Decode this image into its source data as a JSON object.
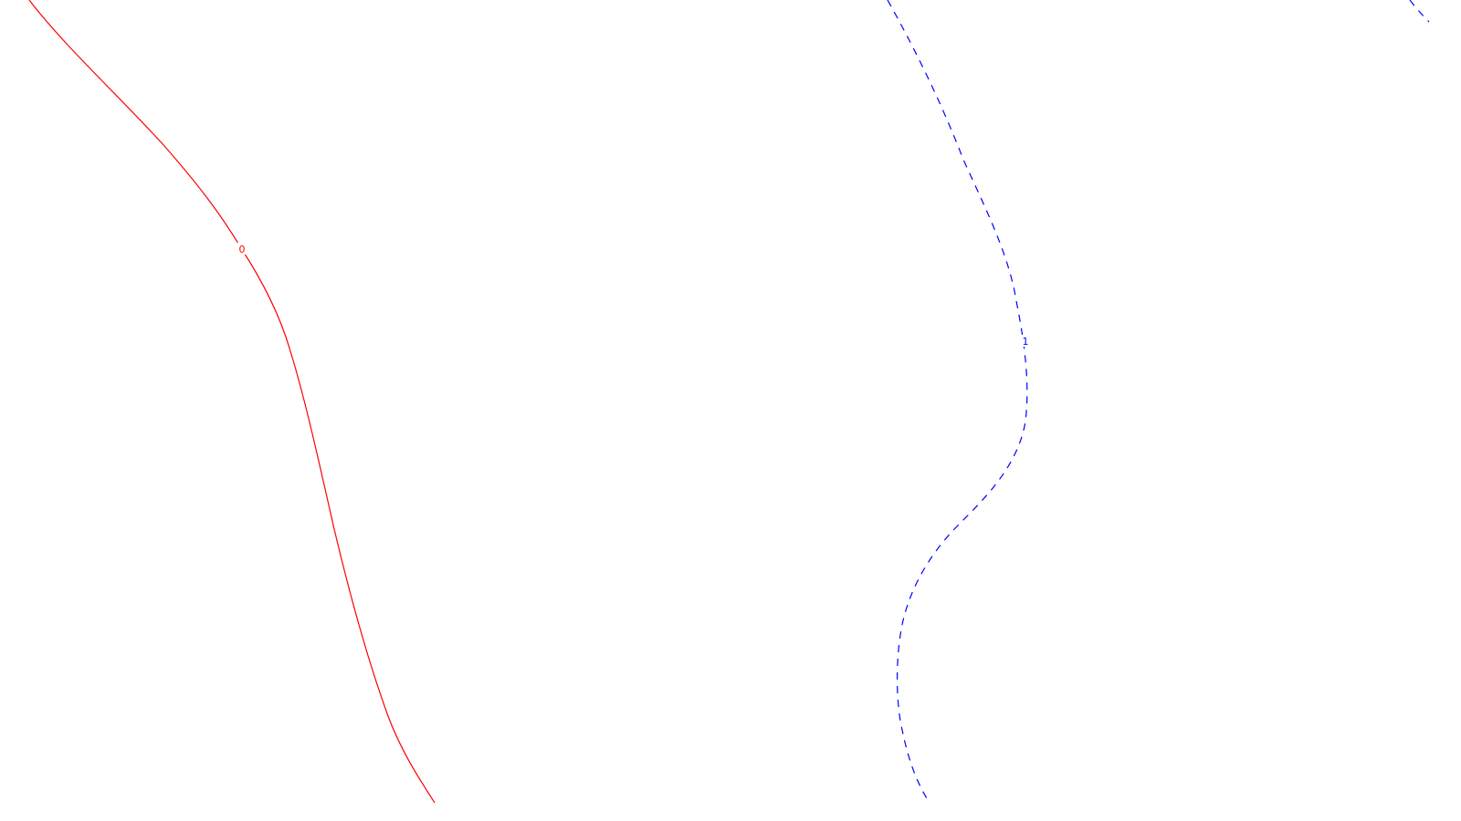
{
  "map": {
    "background": "#ffffff",
    "contours": [
      {
        "id": "contour-0",
        "label": "0",
        "color": "#ff0000",
        "style": "solid"
      },
      {
        "id": "contour-1",
        "label": "1",
        "color": "#0000ff",
        "style": "dashed"
      },
      {
        "id": "contour-2",
        "label": "",
        "color": "#0000ff",
        "style": "dashed"
      }
    ]
  }
}
